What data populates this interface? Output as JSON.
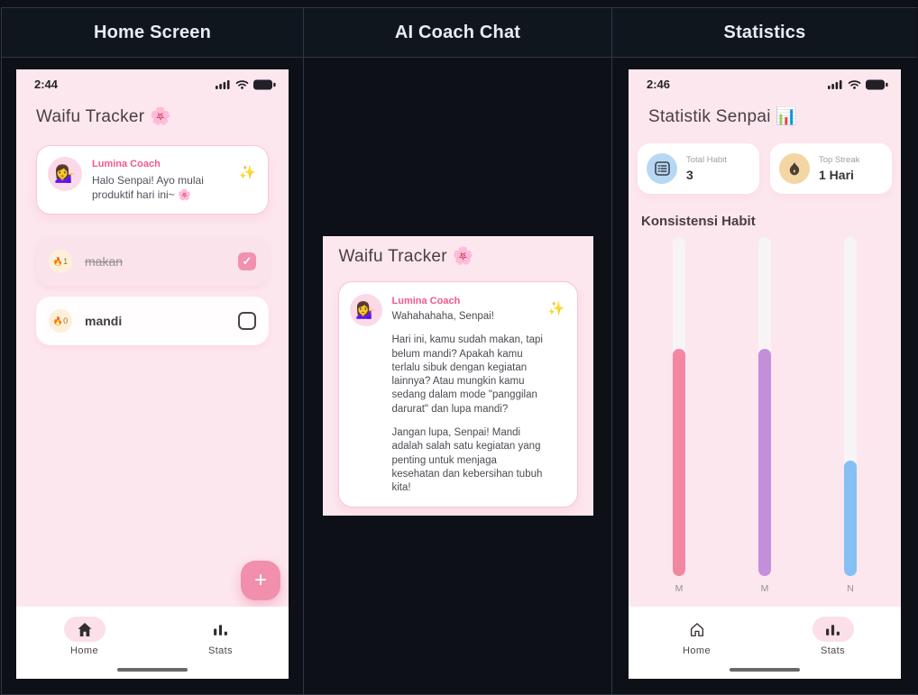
{
  "page": {
    "headers": [
      "Home Screen",
      "AI Coach Chat",
      "Statistics"
    ]
  },
  "home_screen": {
    "status_time": "2:44",
    "title": "Waifu Tracker 🌸",
    "coach": {
      "avatar": "💁‍♀️",
      "name": "Lumina Coach",
      "message": "Halo Senpai! Ayo mulai produktif hari ini~ 🌸",
      "sparkle": "✨"
    },
    "habits": [
      {
        "emoji": "🔥",
        "streak": "1",
        "name": "makan",
        "completed": true
      },
      {
        "emoji": "🔥",
        "streak": "0",
        "name": "mandi",
        "completed": false
      }
    ],
    "checkmark": "✓",
    "fab": "+",
    "nav_home": "Home",
    "nav_stats": "Stats"
  },
  "chat_screen": {
    "title": "Waifu Tracker 🌸",
    "coach": {
      "avatar": "💁‍♀️",
      "name": "Lumina Coach",
      "greeting": "Wahahahaha, Senpai!",
      "paragraph1": "Hari ini, kamu sudah makan, tapi belum mandi? Apakah kamu terlalu sibuk dengan kegiatan lainnya? Atau mungkin kamu sedang dalam mode \"panggilan darurat\" dan lupa mandi?",
      "paragraph2": "Jangan lupa, Senpai! Mandi adalah salah satu kegiatan yang penting untuk menjaga kesehatan dan kebersihan tubuh kita!",
      "sparkle": "✨"
    }
  },
  "stats_screen": {
    "status_time": "2:46",
    "title": "Statistik Senpai 📊",
    "cards": [
      {
        "icon": "list-icon",
        "label": "Total Habit",
        "value": "3"
      },
      {
        "icon": "flame-icon",
        "label": "Top Streak",
        "value": "1 Hari"
      }
    ],
    "section_title": "Konsistensi Habit",
    "chart_data": {
      "type": "bar",
      "categories": [
        "M",
        "M",
        "N"
      ],
      "values": [
        67,
        67,
        34
      ],
      "values_unit": "percent of track filled (estimated)",
      "colors": [
        "#f287a3",
        "#c38fdb",
        "#85c0f2"
      ],
      "track_color": "#f7f4f6",
      "title": "Konsistensi Habit"
    },
    "nav_home": "Home",
    "nav_stats": "Stats"
  },
  "theme": {
    "page_bg": "#0d1117",
    "screen_bg": "#fde7ee",
    "accent_pink": "#f0588f",
    "fab_pink": "#f28fad",
    "card_border": "#f8c6d8",
    "checkbox_checked": "#f191af"
  }
}
